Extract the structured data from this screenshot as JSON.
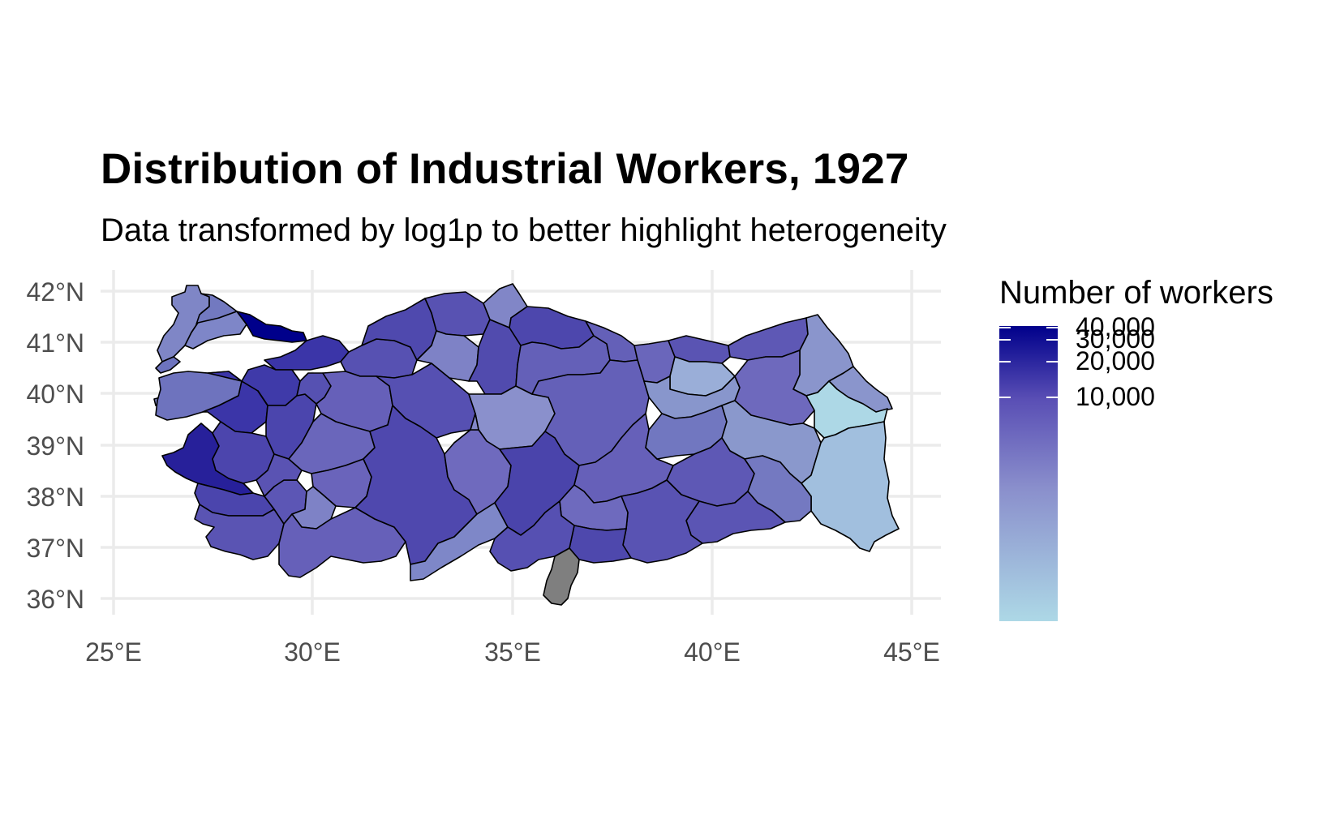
{
  "title": "Distribution of Industrial Workers, 1927",
  "subtitle": "Data transformed by log1p to better highlight heterogeneity",
  "axes": {
    "x_ticks": [
      "25°E",
      "30°E",
      "35°E",
      "40°E",
      "45°E"
    ],
    "y_ticks": [
      "42°N",
      "41°N",
      "40°N",
      "39°N",
      "38°N",
      "37°N",
      "36°N"
    ],
    "x_values": [
      25,
      30,
      35,
      40,
      45
    ],
    "y_values": [
      42,
      41,
      40,
      39,
      38,
      37,
      36
    ],
    "xlim": [
      24.7,
      45.4
    ],
    "ylim": [
      35.7,
      42.4
    ],
    "grid": true
  },
  "legend": {
    "title": "Number of workers",
    "labels": [
      "40,000",
      "30,000",
      "20,000",
      "10,000"
    ],
    "values": [
      40000,
      30000,
      20000,
      10000
    ],
    "scale": "log1p",
    "color_low": "#add8e6",
    "color_mid": "#5a4fb5",
    "color_high": "#00008b",
    "placement": "right"
  },
  "colors": {
    "no_data": "#7f7f7f",
    "province_border": "#000000"
  }
}
